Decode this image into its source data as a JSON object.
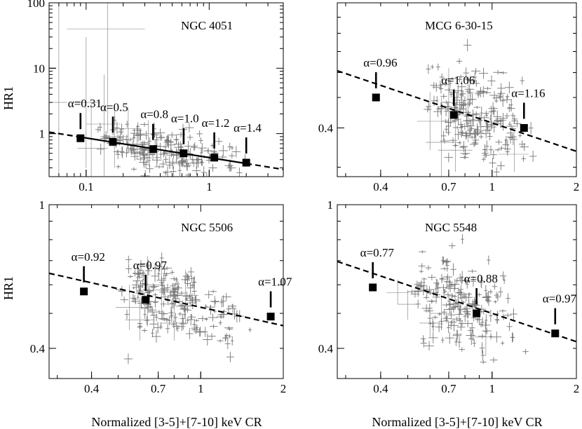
{
  "figure": {
    "ylabel": "HR1",
    "xlabel": "Normalized [3-5]+[7-10] keV CR"
  },
  "chart_data": [
    {
      "type": "scatter",
      "title": "NGC 4051",
      "xlabel": "Normalized [3-5]+[7-10] keV CR",
      "ylabel": "HR1",
      "xscale": "log",
      "yscale": "log",
      "xlim": [
        0.05,
        4
      ],
      "ylim": [
        0.22,
        100
      ],
      "xticks": [
        {
          "v": 0.1,
          "label": "0.1"
        },
        {
          "v": 1,
          "label": "1"
        }
      ],
      "yticks": [
        {
          "v": 1,
          "label": "1"
        },
        {
          "v": 10,
          "label": "10"
        },
        {
          "v": 100,
          "label": "100"
        }
      ],
      "cloud": {
        "xrange": [
          0.12,
          3.4
        ],
        "slope": -0.32,
        "y_at_1": 0.42,
        "scatter": 0.15,
        "n": 190
      },
      "errorbars": [
        {
          "x": 0.15,
          "y": 40,
          "xe": [
            0.07,
            0.3
          ],
          "ye": [
            1,
            100
          ]
        },
        {
          "x": 0.06,
          "y": 3,
          "xe": [
            0.052,
            0.07
          ],
          "ye": [
            0.22,
            100
          ]
        },
        {
          "x": 0.1,
          "y": 3,
          "xe": [
            0.08,
            0.13
          ],
          "ye": [
            0.3,
            30
          ]
        },
        {
          "x": 0.14,
          "y": 1.4,
          "xe": [
            0.1,
            0.19
          ],
          "ye": [
            0.22,
            8
          ]
        },
        {
          "x": 0.11,
          "y": 0.6,
          "xe": [
            0.085,
            0.15
          ],
          "ye": [
            0.22,
            3
          ]
        },
        {
          "x": 0.17,
          "y": 0.9,
          "xe": [
            0.13,
            0.22
          ],
          "ye": [
            0.3,
            2.5
          ]
        },
        {
          "x": 0.22,
          "y": 1.2,
          "xe": [
            0.17,
            0.28
          ],
          "ye": [
            0.5,
            2.5
          ]
        },
        {
          "x": 0.26,
          "y": 0.7,
          "xe": [
            0.21,
            0.33
          ],
          "ye": [
            0.4,
            1.3
          ]
        },
        {
          "x": 0.32,
          "y": 1.0,
          "xe": [
            0.26,
            0.39
          ],
          "ye": [
            0.6,
            1.6
          ]
        }
      ],
      "fit": {
        "slope": -0.3,
        "y_at_1": 0.43,
        "solid_range": [
          0.09,
          2.0
        ],
        "dash_range": [
          [
            0.05,
            0.09
          ],
          [
            2.0,
            4
          ]
        ]
      },
      "bins": [
        {
          "x": 0.09,
          "y": 0.85,
          "alpha": "α=0.31"
        },
        {
          "x": 0.165,
          "y": 0.75,
          "alpha": "α=0.5"
        },
        {
          "x": 0.35,
          "y": 0.58,
          "alpha": "α=0.8"
        },
        {
          "x": 0.62,
          "y": 0.5,
          "alpha": "α=1.0"
        },
        {
          "x": 1.1,
          "y": 0.43,
          "alpha": "α=1.2"
        },
        {
          "x": 2.0,
          "y": 0.36,
          "alpha": "α=1.4"
        }
      ]
    },
    {
      "type": "scatter",
      "title": "MCG 6-30-15",
      "xlabel": "Normalized [3-5]+[7-10] keV CR",
      "ylabel": "HR1",
      "xscale": "log",
      "yscale": "log",
      "xlim": [
        0.28,
        2
      ],
      "ylim": [
        0.28,
        1
      ],
      "xticks": [
        {
          "v": 0.4,
          "label": "0.4"
        },
        {
          "v": 0.7,
          "label": "0.7"
        },
        {
          "v": 1,
          "label": "1"
        },
        {
          "v": 2,
          "label": "2"
        }
      ],
      "yticks": [
        {
          "v": 0.4,
          "label": "0.4"
        }
      ],
      "cloud": {
        "xrange": [
          0.56,
          1.6
        ],
        "slope": -0.3,
        "y_at_1": 0.415,
        "scatter": 0.07,
        "n": 220
      },
      "errorbars": [
        {
          "x": 0.66,
          "y": 0.36,
          "xe": [
            0.58,
            0.77
          ],
          "ye": [
            0.28,
            0.5
          ]
        },
        {
          "x": 0.74,
          "y": 0.34,
          "xe": [
            0.64,
            0.85
          ],
          "ye": [
            0.29,
            0.42
          ]
        },
        {
          "x": 0.6,
          "y": 0.42,
          "xe": [
            0.54,
            0.68
          ],
          "ye": [
            0.34,
            0.52
          ]
        },
        {
          "x": 0.82,
          "y": 0.44,
          "xe": [
            0.72,
            0.92
          ],
          "ye": [
            0.36,
            0.58
          ]
        },
        {
          "x": 0.7,
          "y": 0.46,
          "xe": [
            0.63,
            0.8
          ],
          "ye": [
            0.38,
            0.62
          ]
        },
        {
          "x": 1.2,
          "y": 0.33,
          "xe": [
            1.05,
            1.35
          ],
          "ye": [
            0.29,
            0.38
          ]
        }
      ],
      "fit": {
        "slope": -0.3,
        "y_at_1": 0.415,
        "solid_range": null,
        "dash_range": [
          [
            0.28,
            2
          ]
        ]
      },
      "bins": [
        {
          "x": 0.385,
          "y": 0.5,
          "alpha": "α=0.96"
        },
        {
          "x": 0.73,
          "y": 0.44,
          "alpha": "α=1.06"
        },
        {
          "x": 1.3,
          "y": 0.4,
          "alpha": "α=1.16"
        }
      ]
    },
    {
      "type": "scatter",
      "title": "NGC 5506",
      "xlabel": "Normalized [3-5]+[7-10] keV CR",
      "ylabel": "HR1",
      "xscale": "log",
      "yscale": "log",
      "xlim": [
        0.28,
        2
      ],
      "ylim": [
        0.33,
        1
      ],
      "xticks": [
        {
          "v": 0.4,
          "label": "0.4"
        },
        {
          "v": 0.7,
          "label": "0.7"
        },
        {
          "v": 1,
          "label": "1"
        },
        {
          "v": 2,
          "label": "2"
        }
      ],
      "yticks": [
        {
          "v": 0.4,
          "label": "0.4"
        },
        {
          "v": 1,
          "label": "1"
        }
      ],
      "cloud": {
        "xrange": [
          0.48,
          1.8
        ],
        "slope": -0.17,
        "y_at_1": 0.52,
        "scatter": 0.05,
        "n": 210
      },
      "errorbars": [
        {
          "x": 0.64,
          "y": 0.6,
          "xe": [
            0.56,
            0.72
          ],
          "ye": [
            0.46,
            0.72
          ]
        },
        {
          "x": 0.72,
          "y": 0.58,
          "xe": [
            0.62,
            0.82
          ],
          "ye": [
            0.48,
            0.7
          ]
        },
        {
          "x": 0.55,
          "y": 0.52,
          "xe": [
            0.49,
            0.62
          ],
          "ye": [
            0.45,
            0.6
          ]
        },
        {
          "x": 0.88,
          "y": 0.56,
          "xe": [
            0.78,
            0.98
          ],
          "ye": [
            0.47,
            0.66
          ]
        },
        {
          "x": 0.6,
          "y": 0.48,
          "xe": [
            0.53,
            0.68
          ],
          "ye": [
            0.42,
            0.55
          ]
        },
        {
          "x": 0.8,
          "y": 0.47,
          "xe": [
            0.71,
            0.9
          ],
          "ye": [
            0.42,
            0.53
          ]
        }
      ],
      "fit": {
        "slope": -0.17,
        "y_at_1": 0.52,
        "solid_range": null,
        "dash_range": [
          [
            0.28,
            2
          ]
        ]
      },
      "bins": [
        {
          "x": 0.375,
          "y": 0.575,
          "alpha": "α=0.92"
        },
        {
          "x": 0.63,
          "y": 0.545,
          "alpha": "α=0.97"
        },
        {
          "x": 1.8,
          "y": 0.49,
          "alpha": "α=1.07"
        }
      ]
    },
    {
      "type": "scatter",
      "title": "NGC 5548",
      "xlabel": "Normalized [3-5]+[7-10] keV CR",
      "ylabel": "HR1",
      "xscale": "log",
      "yscale": "log",
      "xlim": [
        0.28,
        2
      ],
      "ylim": [
        0.33,
        1
      ],
      "xticks": [
        {
          "v": 0.4,
          "label": "0.4"
        },
        {
          "v": 0.7,
          "label": "0.7"
        },
        {
          "v": 1,
          "label": "1"
        },
        {
          "v": 2,
          "label": "2"
        }
      ],
      "yticks": [
        {
          "v": 0.4,
          "label": "0.4"
        },
        {
          "v": 1,
          "label": "1"
        }
      ],
      "cloud": {
        "xrange": [
          0.5,
          1.5
        ],
        "slope": -0.26,
        "y_at_1": 0.5,
        "scatter": 0.06,
        "n": 200
      },
      "errorbars": [
        {
          "x": 0.6,
          "y": 0.47,
          "xe": [
            0.55,
            0.65
          ],
          "ye": [
            0.43,
            0.51
          ]
        },
        {
          "x": 0.5,
          "y": 0.53,
          "xe": [
            0.46,
            0.54
          ],
          "ye": [
            0.48,
            0.58
          ]
        },
        {
          "x": 0.66,
          "y": 0.5,
          "xe": [
            0.6,
            0.72
          ],
          "ye": [
            0.45,
            0.56
          ]
        },
        {
          "x": 0.95,
          "y": 0.43,
          "xe": [
            0.86,
            1.05
          ],
          "ye": [
            0.38,
            0.48
          ]
        },
        {
          "x": 0.46,
          "y": 0.57,
          "xe": [
            0.42,
            0.5
          ],
          "ye": [
            0.53,
            0.62
          ]
        }
      ],
      "fit": {
        "slope": -0.26,
        "y_at_1": 0.5,
        "solid_range": null,
        "dash_range": [
          [
            0.28,
            2
          ]
        ]
      },
      "bins": [
        {
          "x": 0.375,
          "y": 0.59,
          "alpha": "α=0.77"
        },
        {
          "x": 0.88,
          "y": 0.5,
          "alpha": "α=0.88"
        },
        {
          "x": 1.68,
          "y": 0.44,
          "alpha": "α=0.97"
        }
      ]
    }
  ]
}
